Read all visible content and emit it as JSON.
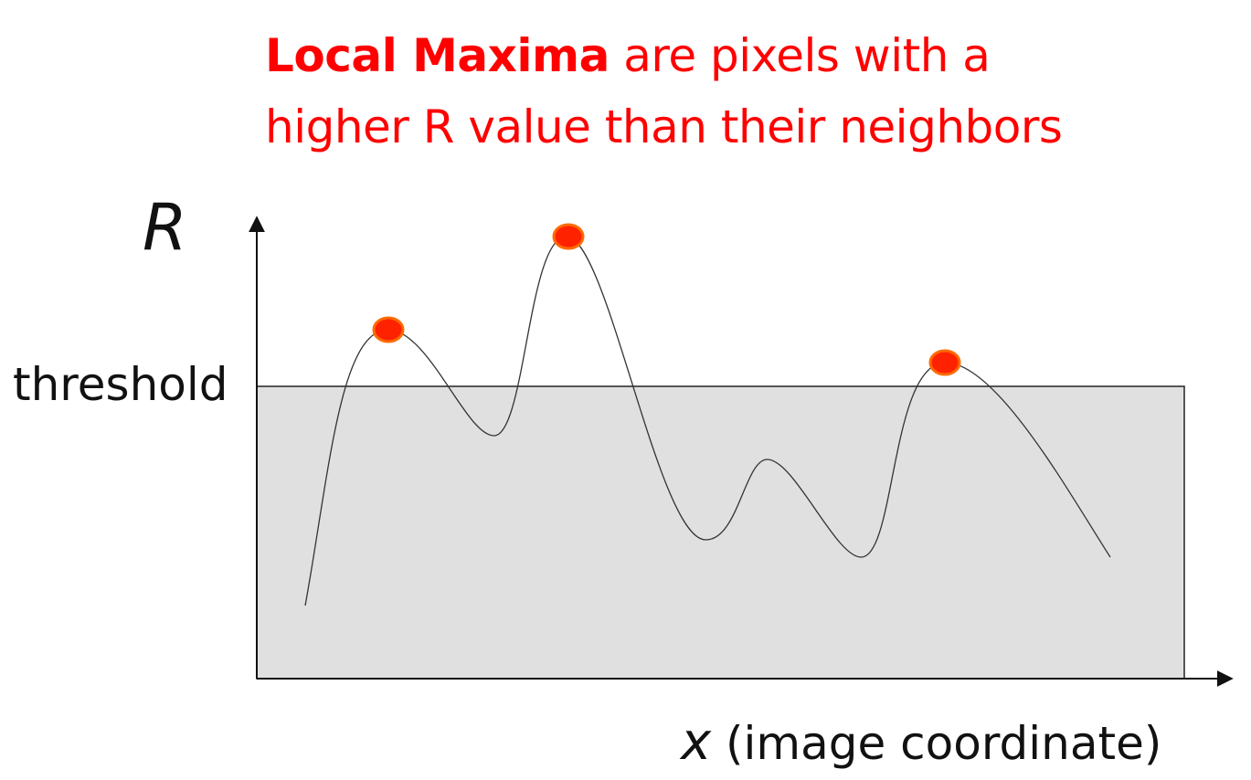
{
  "title": {
    "emphasis": "Local Maxima",
    "line1_rest": " are pixels with a",
    "line2": "higher R value than their neighbors"
  },
  "axes": {
    "y_label": "R",
    "threshold_label": "threshold",
    "x_variable": "x",
    "x_description": " (image coordinate)"
  },
  "colors": {
    "title": "#ff0000",
    "maxima_fill": "#ff2200",
    "maxima_stroke": "#ff6a00",
    "below_threshold_region": "#e0e0e0"
  }
}
